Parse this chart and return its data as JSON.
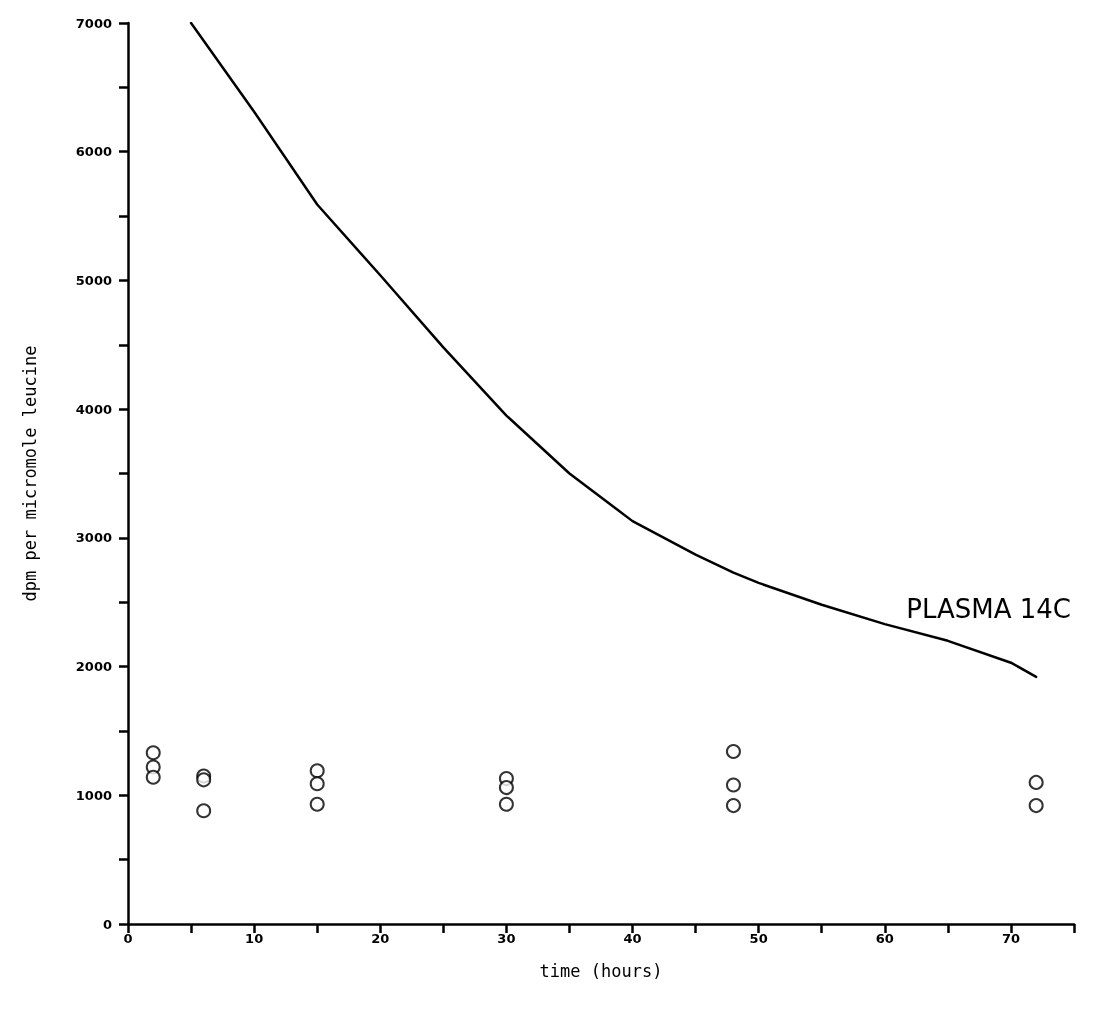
{
  "chart_data": {
    "type": "scatter",
    "xlabel": "time (hours)",
    "ylabel": "dpm per micromole leucine",
    "xlim": [
      0,
      75
    ],
    "ylim": [
      0,
      7000
    ],
    "xticks": [
      0,
      {
        "value": 5,
        "label": null
      },
      10,
      {
        "value": 15,
        "label": null
      },
      20,
      {
        "value": 25,
        "label": null
      },
      30,
      {
        "value": 35,
        "label": null
      },
      40,
      {
        "value": 45,
        "label": null
      },
      50,
      {
        "value": 55,
        "label": null
      },
      60,
      {
        "value": 65,
        "label": null
      },
      70,
      {
        "value": 75,
        "label": null
      }
    ],
    "yticks": [
      0,
      {
        "value": 500,
        "label": null
      },
      1000,
      {
        "value": 1500,
        "label": null
      },
      2000,
      {
        "value": 2500,
        "label": null
      },
      3000,
      {
        "value": 3500,
        "label": null
      },
      4000,
      {
        "value": 4500,
        "label": null
      },
      5000,
      {
        "value": 5500,
        "label": null
      },
      6000,
      {
        "value": 6500,
        "label": null
      },
      7000
    ],
    "grid": false,
    "annotations": [
      "PLASMA 14C"
    ],
    "series": [
      {
        "marker": "circle",
        "color": "#000000",
        "x": [
          2,
          2,
          2,
          6,
          6,
          6,
          15,
          15,
          15,
          30,
          30,
          30,
          48,
          48,
          48,
          72,
          72
        ],
        "values": [
          1330,
          1220,
          1140,
          1150,
          1120,
          880,
          1190,
          1090,
          930,
          1130,
          1060,
          930,
          1340,
          1080,
          920,
          1100,
          920
        ]
      },
      {
        "type": "line",
        "marker": "none",
        "line_style": "solid",
        "color": "#000000",
        "x": [
          5,
          10,
          15,
          20,
          25,
          30,
          35,
          40,
          45,
          48,
          50,
          55,
          60,
          65,
          70,
          72
        ],
        "values": [
          7000,
          6310,
          5590,
          5040,
          4480,
          3950,
          3500,
          3130,
          2870,
          2730,
          2650,
          2480,
          2330,
          2200,
          2030,
          1920
        ]
      }
    ]
  }
}
